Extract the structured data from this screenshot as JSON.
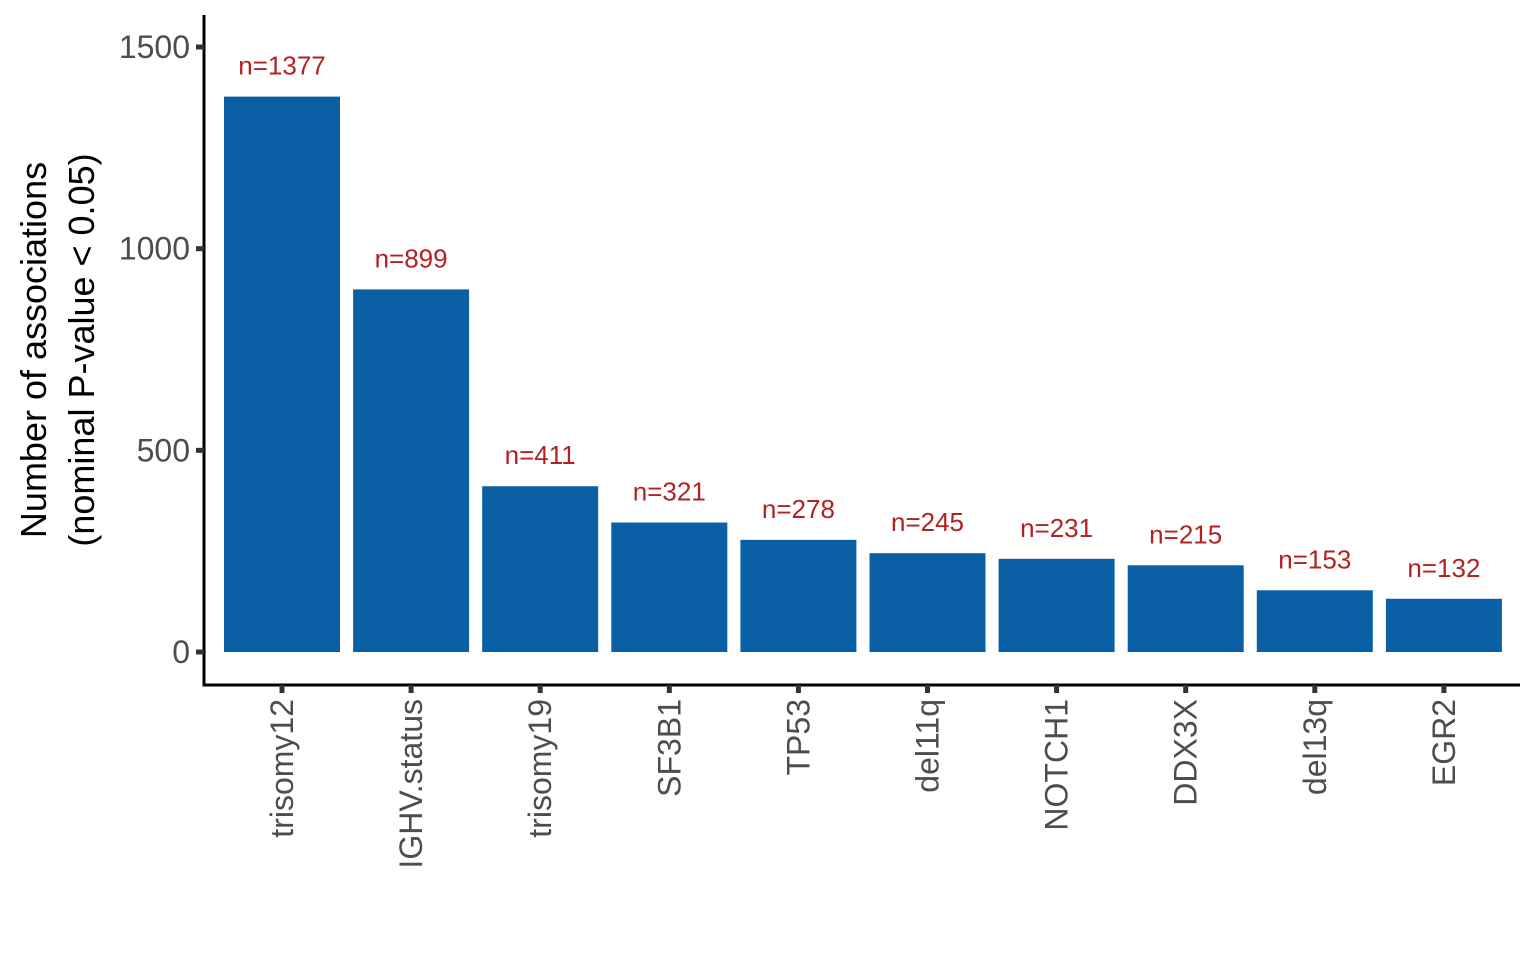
{
  "chart_data": {
    "type": "bar",
    "categories": [
      "trisomy12",
      "IGHV.status",
      "trisomy19",
      "SF3B1",
      "TP53",
      "del11q",
      "NOTCH1",
      "DDX3X",
      "del13q",
      "EGR2"
    ],
    "values": [
      1377,
      899,
      411,
      321,
      278,
      245,
      231,
      215,
      153,
      132
    ],
    "data_labels": [
      "n=1377",
      "n=899",
      "n=411",
      "n=321",
      "n=278",
      "n=245",
      "n=231",
      "n=215",
      "n=153",
      "n=132"
    ],
    "title": "",
    "xlabel": "",
    "ylabel_lines": [
      "Number of associations",
      "(nominal P-value < 0.05)"
    ],
    "ylim": [
      -80,
      1570
    ],
    "yticks": [
      0,
      500,
      1000,
      1500
    ],
    "ytick_labels": [
      "0",
      "500",
      "1000",
      "1500"
    ],
    "grid": false,
    "legend": "none",
    "colors": {
      "bar": "#0b5fa5",
      "data_label": "#b22222",
      "tick_label": "#4d4d4d",
      "axis": "#000000"
    }
  }
}
